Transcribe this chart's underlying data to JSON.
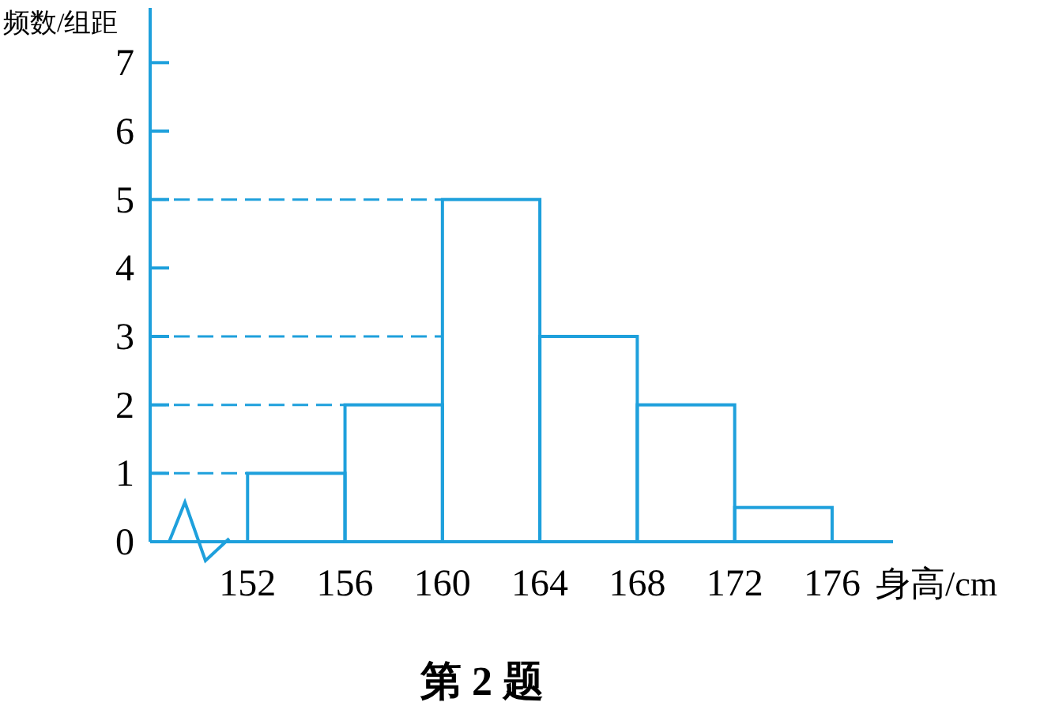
{
  "chart_data": {
    "type": "histogram",
    "color": "#1ea0dc",
    "bins": [
      152,
      156,
      160,
      164,
      168,
      172,
      176
    ],
    "values": [
      1,
      2,
      5,
      3,
      2,
      0.5
    ],
    "xlabel": "身高/cm",
    "ylabel": "频数/组距",
    "xlim": [
      148,
      178.5
    ],
    "ylim": [
      0,
      7.8
    ],
    "xticks": [
      152,
      156,
      160,
      164,
      168,
      172,
      176
    ],
    "yticks": [
      0,
      1,
      2,
      3,
      4,
      5,
      6,
      7
    ],
    "ref_lines": [
      {
        "axis": "y",
        "value": 1,
        "line_style": "dashed"
      },
      {
        "axis": "y",
        "value": 2,
        "line_style": "dashed"
      },
      {
        "axis": "y",
        "value": 3,
        "line_style": "dashed"
      },
      {
        "axis": "y",
        "value": 5,
        "line_style": "dashed"
      }
    ],
    "annotations": [
      "第 2 题"
    ]
  }
}
